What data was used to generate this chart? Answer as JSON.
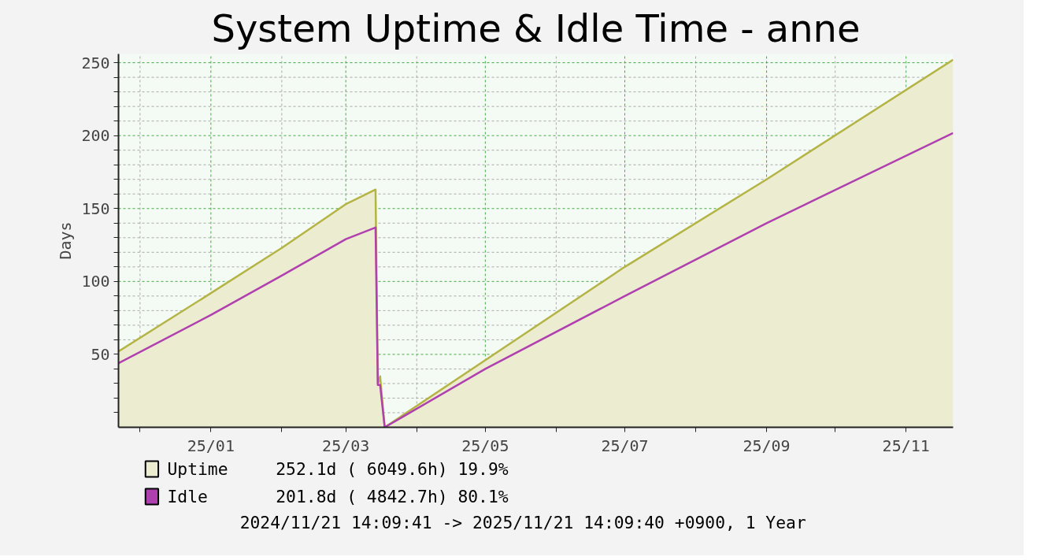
{
  "chart_data": {
    "type": "area",
    "title": "System Uptime & Idle Time - anne",
    "ylabel": "Days",
    "x": [
      "2024-11-21T14:09",
      "2025-01-01",
      "2025-02-01",
      "2025-03-01",
      "2025-03-14",
      "2025-03-15",
      "2025-03-16",
      "2025-03-18",
      "2025-05-01",
      "2025-07-01",
      "2025-09-01",
      "2025-11-21T14:09"
    ],
    "series": [
      {
        "name": "Uptime",
        "color": "#b4b445",
        "values": [
          52,
          92,
          123,
          153,
          163,
          30,
          35,
          0,
          46,
          110,
          170,
          252.1
        ]
      },
      {
        "name": "Idle",
        "type": "line",
        "color": "#b040b0",
        "values": [
          44,
          77,
          104,
          129,
          137,
          29,
          29,
          0,
          40,
          90,
          140,
          201.8
        ]
      }
    ],
    "xlim": [
      "2024-11-21T14:09",
      "2025-11-21T14:09"
    ],
    "xticks": [
      {
        "value": "2024-12-01",
        "label": null
      },
      {
        "value": "2025-01-01",
        "label": "25/01"
      },
      {
        "value": "2025-02-01",
        "label": null
      },
      {
        "value": "2025-03-01",
        "label": "25/03"
      },
      {
        "value": "2025-04-01",
        "label": null
      },
      {
        "value": "2025-05-01",
        "label": "25/05"
      },
      {
        "value": "2025-06-01",
        "label": null
      },
      {
        "value": "2025-07-01",
        "label": "25/07"
      },
      {
        "value": "2025-08-01",
        "label": null
      },
      {
        "value": "2025-09-01",
        "label": "25/09"
      },
      {
        "value": "2025-10-01",
        "label": null
      },
      {
        "value": "2025-11-01",
        "label": "25/11"
      }
    ],
    "ylim": [
      0,
      256
    ],
    "yticks": [
      {
        "value": 10,
        "label": null
      },
      {
        "value": 20,
        "label": null
      },
      {
        "value": 30,
        "label": null
      },
      {
        "value": 40,
        "label": null
      },
      50,
      {
        "value": 60,
        "label": null
      },
      {
        "value": 70,
        "label": null
      },
      {
        "value": 80,
        "label": null
      },
      {
        "value": 90,
        "label": null
      },
      100,
      {
        "value": 110,
        "label": null
      },
      {
        "value": 120,
        "label": null
      },
      {
        "value": 130,
        "label": null
      },
      {
        "value": 140,
        "label": null
      },
      150,
      {
        "value": 160,
        "label": null
      },
      {
        "value": 170,
        "label": null
      },
      {
        "value": 180,
        "label": null
      },
      {
        "value": 190,
        "label": null
      },
      200,
      {
        "value": 210,
        "label": null
      },
      {
        "value": 220,
        "label": null
      },
      {
        "value": 230,
        "label": null
      },
      {
        "value": 240,
        "label": null
      },
      250
    ],
    "grid": true,
    "legend": "bottom",
    "marker": "none",
    "line_style": "solid",
    "annotations": [
      "252.1d  ( 6049.6h)    19.9%",
      "201.8d  ( 4842.7h)    80.1%",
      "2024/11/21 14:09:41 -> 2025/11/21 14:09:40 +0900, 1 Year"
    ]
  }
}
